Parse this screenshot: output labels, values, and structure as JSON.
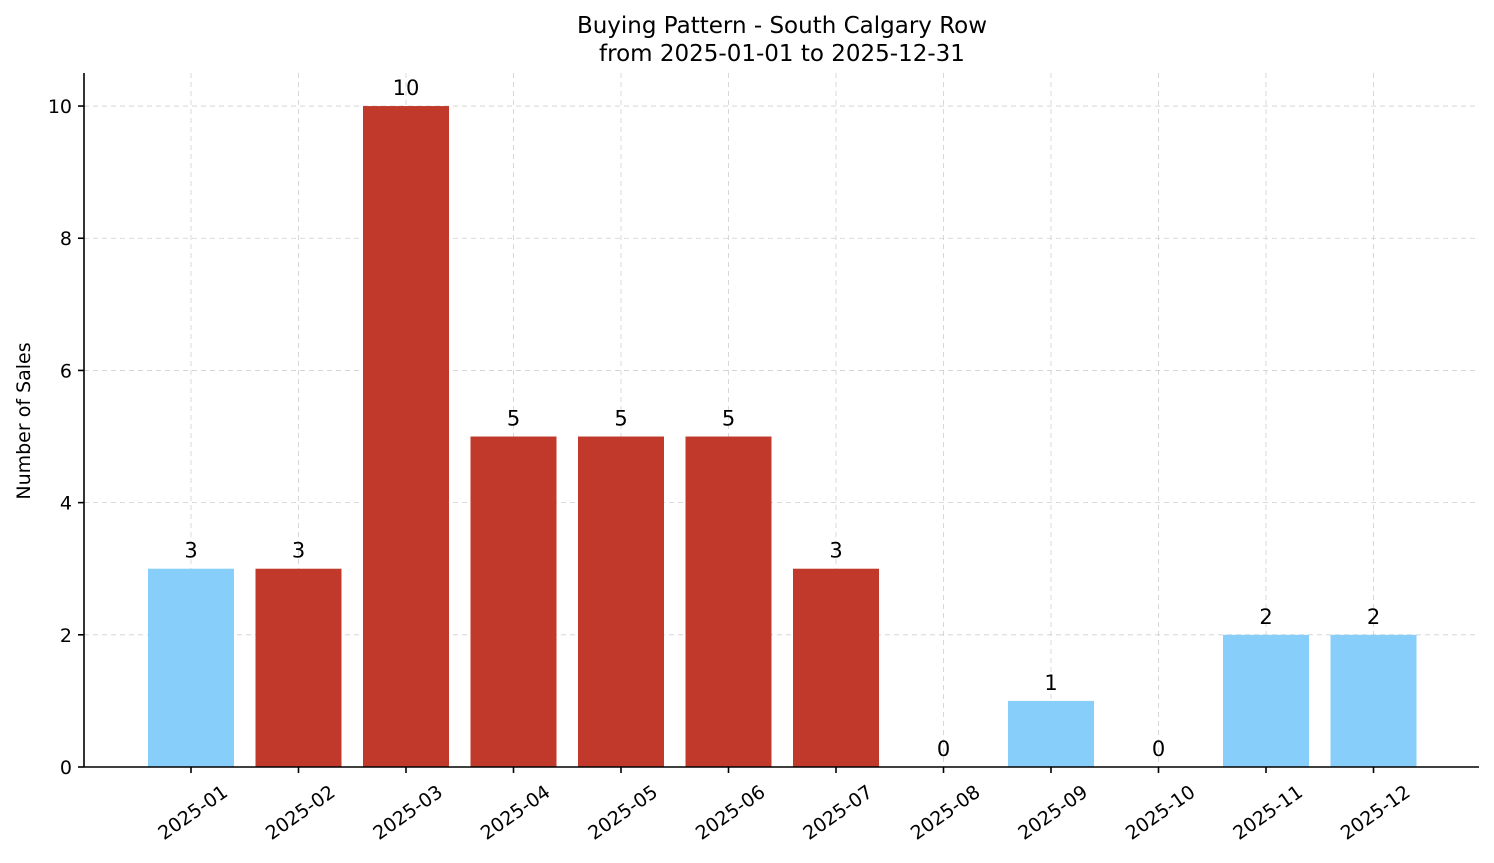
{
  "chart_data": {
    "type": "bar",
    "title": "Buying Pattern - South Calgary Row",
    "subtitle": "from 2025-01-01 to 2025-12-31",
    "xlabel": "",
    "ylabel": "Number of Sales",
    "categories": [
      "2025-01",
      "2025-02",
      "2025-03",
      "2025-04",
      "2025-05",
      "2025-06",
      "2025-07",
      "2025-08",
      "2025-09",
      "2025-10",
      "2025-11",
      "2025-12"
    ],
    "values": [
      3,
      3,
      10,
      5,
      5,
      5,
      3,
      0,
      1,
      0,
      2,
      2
    ],
    "highlighted": [
      false,
      true,
      true,
      true,
      true,
      true,
      true,
      false,
      false,
      false,
      false,
      false
    ],
    "colors": {
      "normal": "#87CEFA",
      "highlighted": "#C0392B"
    },
    "ylim": [
      0,
      10.5
    ],
    "yticks": [
      0,
      2,
      4,
      6,
      8,
      10
    ],
    "grid": true,
    "data_labels": true
  }
}
